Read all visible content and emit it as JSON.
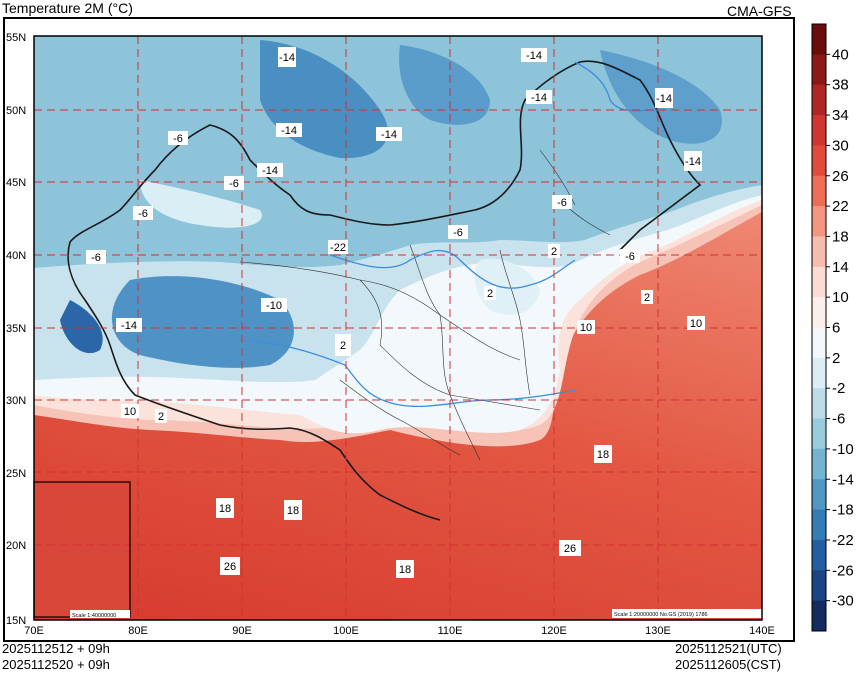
{
  "header": {
    "title": "Temperature  2M (°C)",
    "model": "CMA-GFS"
  },
  "map": {
    "lat_labels": [
      "55N",
      "50N",
      "45N",
      "40N",
      "35N",
      "30N",
      "25N",
      "20N",
      "15N"
    ],
    "lon_labels": [
      "70E",
      "80E",
      "90E",
      "100E",
      "110E",
      "120E",
      "130E",
      "140E"
    ],
    "contour_labels": [
      "-14",
      "-14",
      "-14",
      "-14",
      "-14",
      "-14",
      "-14",
      "-14",
      "-6",
      "-6",
      "-6",
      "-6",
      "-6",
      "-6",
      "-6",
      "-22",
      "-14",
      "-10",
      "2",
      "2",
      "2",
      "2",
      "2",
      "10",
      "10",
      "10",
      "18",
      "18",
      "18",
      "18",
      "26",
      "26"
    ],
    "scale_main": "Scale 1:20000000 No.GS (2019) 1786",
    "scale_inset": "Scale 1:40000000"
  },
  "colorbar": {
    "labels": [
      "40",
      "38",
      "34",
      "30",
      "26",
      "22",
      "18",
      "14",
      "10",
      "6",
      "2",
      "-2",
      "-6",
      "-10",
      "-14",
      "-18",
      "-22",
      "-26",
      "-30"
    ],
    "colors": [
      "#6b0d0d",
      "#8c1818",
      "#b02624",
      "#cf3630",
      "#e14b3a",
      "#ec6d58",
      "#f39681",
      "#f7bcae",
      "#fadcd5",
      "#fceeea",
      "#f2f8fb",
      "#dcedf3",
      "#bcdde8",
      "#98cbdc",
      "#74b4d0",
      "#4f98c4",
      "#347cb5",
      "#235fa0",
      "#1a4484",
      "#122d5e"
    ]
  },
  "footer": {
    "init_utc": "2025112512 + 09h",
    "init_cst": "2025112520 + 09h",
    "valid_utc": "2025112521(UTC)",
    "valid_cst": "2025112605(CST)"
  }
}
